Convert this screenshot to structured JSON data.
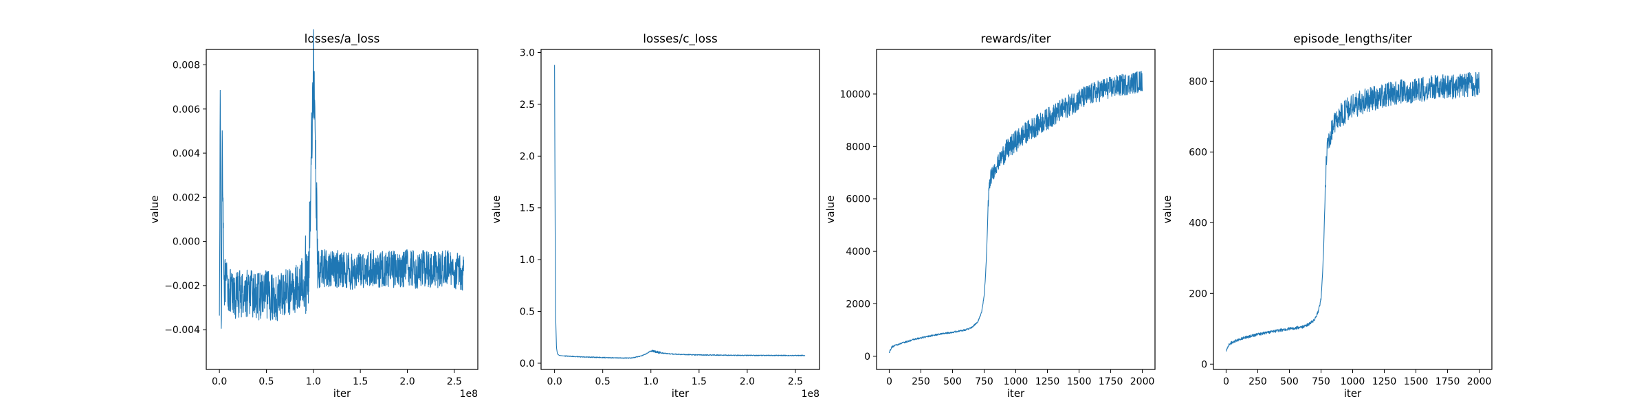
{
  "chart_data": [
    {
      "type": "line",
      "title": "losses/a_loss",
      "xlabel": "iter",
      "ylabel": "value",
      "x_offset_text": "1e8",
      "xlim": [
        -0.14,
        2.75
      ],
      "ylim": [
        -0.0058,
        0.0087
      ],
      "x_ticks": [
        0.0,
        0.5,
        1.0,
        1.5,
        2.0,
        2.5
      ],
      "x_tick_labels": [
        "0.0",
        "0.5",
        "1.0",
        "1.5",
        "2.0",
        "2.5"
      ],
      "y_ticks": [
        -0.004,
        -0.002,
        0.0,
        0.002,
        0.004,
        0.006,
        0.008
      ],
      "y_tick_labels": [
        "−0.004",
        "−0.002",
        "0.000",
        "0.002",
        "0.004",
        "0.006",
        "0.008"
      ],
      "color": "#1f77b4",
      "series": [
        {
          "x": [
            0.0,
            0.01,
            0.02,
            0.03,
            0.05,
            0.1,
            0.15,
            0.2,
            0.3,
            0.4,
            0.5,
            0.6,
            0.7,
            0.8,
            0.85,
            0.9,
            0.95,
            1.0,
            1.05,
            1.1,
            1.2,
            1.3,
            1.4,
            1.5,
            1.6,
            1.7,
            1.8,
            1.9,
            2.0,
            2.1,
            2.2,
            2.3,
            2.4,
            2.5,
            2.6
          ],
          "values": [
            -0.0025,
            0.0071,
            -0.0052,
            0.0049,
            -0.0018,
            -0.0022,
            -0.0026,
            -0.0024,
            -0.0023,
            -0.0025,
            -0.0024,
            -0.0026,
            -0.0023,
            -0.0022,
            -0.002,
            -0.0016,
            -0.0014,
            0.008,
            -0.0013,
            -0.0012,
            -0.0013,
            -0.0012,
            -0.0014,
            -0.0013,
            -0.0012,
            -0.0013,
            -0.0012,
            -0.0013,
            -0.0012,
            -0.0013,
            -0.0012,
            -0.0013,
            -0.0012,
            -0.0013,
            -0.0014
          ]
        }
      ]
    },
    {
      "type": "line",
      "title": "losses/c_loss",
      "xlabel": "iter",
      "ylabel": "value",
      "x_offset_text": "1e8",
      "xlim": [
        -0.14,
        2.75
      ],
      "ylim": [
        -0.06,
        3.03
      ],
      "x_ticks": [
        0.0,
        0.5,
        1.0,
        1.5,
        2.0,
        2.5
      ],
      "x_tick_labels": [
        "0.0",
        "0.5",
        "1.0",
        "1.5",
        "2.0",
        "2.5"
      ],
      "y_ticks": [
        0.0,
        0.5,
        1.0,
        1.5,
        2.0,
        2.5,
        3.0
      ],
      "y_tick_labels": [
        "0.0",
        "0.5",
        "1.0",
        "1.5",
        "2.0",
        "2.5",
        "3.0"
      ],
      "color": "#1f77b4",
      "series": [
        {
          "x": [
            0.0,
            0.005,
            0.01,
            0.02,
            0.03,
            0.05,
            0.1,
            0.2,
            0.3,
            0.5,
            0.7,
            0.8,
            0.9,
            0.95,
            1.0,
            1.05,
            1.1,
            1.2,
            1.3,
            1.5,
            1.7,
            1.9,
            2.1,
            2.3,
            2.5,
            2.6
          ],
          "values": [
            2.88,
            1.6,
            0.5,
            0.15,
            0.09,
            0.075,
            0.07,
            0.065,
            0.06,
            0.055,
            0.05,
            0.05,
            0.07,
            0.09,
            0.12,
            0.11,
            0.1,
            0.09,
            0.085,
            0.08,
            0.078,
            0.076,
            0.075,
            0.075,
            0.074,
            0.075
          ]
        }
      ]
    },
    {
      "type": "line",
      "title": "rewards/iter",
      "xlabel": "iter",
      "ylabel": "value",
      "xlim": [
        -100,
        2100
      ],
      "ylim": [
        -500,
        11700
      ],
      "x_ticks": [
        0,
        250,
        500,
        750,
        1000,
        1250,
        1500,
        1750,
        2000
      ],
      "x_tick_labels": [
        "0",
        "250",
        "500",
        "750",
        "1000",
        "1250",
        "1500",
        "1750",
        "2000"
      ],
      "y_ticks": [
        0,
        2000,
        4000,
        6000,
        8000,
        10000
      ],
      "y_tick_labels": [
        "0",
        "2000",
        "4000",
        "6000",
        "8000",
        "10000"
      ],
      "color": "#1f77b4",
      "series": [
        {
          "x": [
            0,
            10,
            20,
            50,
            100,
            200,
            300,
            400,
            500,
            600,
            650,
            700,
            730,
            750,
            760,
            770,
            780,
            790,
            800,
            850,
            900,
            1000,
            1100,
            1200,
            1300,
            1400,
            1500,
            1600,
            1700,
            1800,
            1900,
            2000
          ],
          "values": [
            150,
            250,
            350,
            420,
            500,
            650,
            750,
            850,
            920,
            1000,
            1100,
            1300,
            1700,
            2300,
            3000,
            4000,
            5500,
            6500,
            6800,
            7300,
            7700,
            8200,
            8600,
            8900,
            9200,
            9500,
            9800,
            10000,
            10200,
            10300,
            10400,
            10500
          ]
        }
      ]
    },
    {
      "type": "line",
      "title": "episode_lengths/iter",
      "xlabel": "iter",
      "ylabel": "value",
      "xlim": [
        -100,
        2100
      ],
      "ylim": [
        -15,
        890
      ],
      "x_ticks": [
        0,
        250,
        500,
        750,
        1000,
        1250,
        1500,
        1750,
        2000
      ],
      "x_tick_labels": [
        "0",
        "250",
        "500",
        "750",
        "1000",
        "1250",
        "1500",
        "1750",
        "2000"
      ],
      "y_ticks": [
        0,
        200,
        400,
        600,
        800
      ],
      "y_tick_labels": [
        "0",
        "200",
        "400",
        "600",
        "800"
      ],
      "color": "#1f77b4",
      "series": [
        {
          "x": [
            0,
            10,
            20,
            50,
            100,
            200,
            300,
            400,
            500,
            600,
            650,
            700,
            730,
            750,
            760,
            770,
            780,
            790,
            800,
            850,
            900,
            1000,
            1100,
            1200,
            1300,
            1400,
            1500,
            1600,
            1700,
            1800,
            1900,
            2000
          ],
          "values": [
            35,
            45,
            55,
            62,
            70,
            80,
            88,
            94,
            100,
            105,
            112,
            125,
            150,
            185,
            240,
            320,
            450,
            560,
            620,
            680,
            700,
            730,
            745,
            755,
            765,
            770,
            775,
            780,
            785,
            785,
            790,
            790
          ]
        }
      ]
    }
  ]
}
